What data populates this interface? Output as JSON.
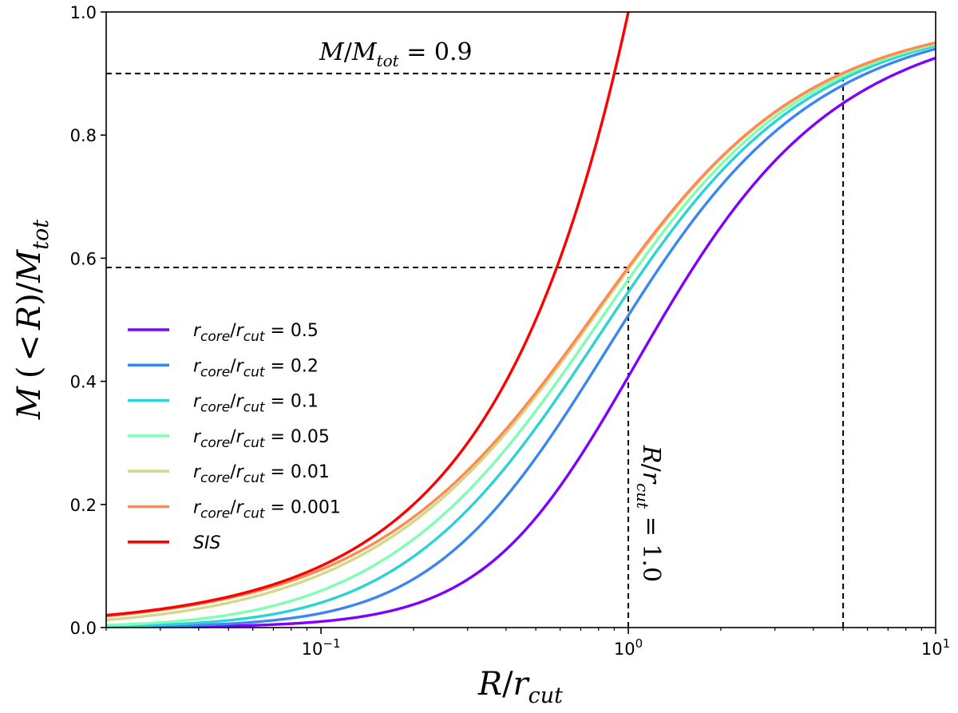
{
  "chart_data": {
    "type": "line",
    "xscale": "log",
    "xlim": [
      0.02,
      10
    ],
    "ylim": [
      0.0,
      1.0
    ],
    "xlabel": "R/r_cut",
    "ylabel": "M(<R)/M_tot",
    "xticks": [
      {
        "value": 0.1,
        "base": "10",
        "exp": "−1"
      },
      {
        "value": 1,
        "base": "10",
        "exp": "0"
      },
      {
        "value": 10,
        "base": "10",
        "exp": "1"
      }
    ],
    "yticks": [
      {
        "value": 0.0,
        "label": "0.0"
      },
      {
        "value": 0.2,
        "label": "0.2"
      },
      {
        "value": 0.4,
        "label": "0.4"
      },
      {
        "value": 0.6,
        "label": "0.6"
      },
      {
        "value": 0.8,
        "label": "0.8"
      },
      {
        "value": 1.0,
        "label": "1.0"
      }
    ],
    "series": [
      {
        "name": "r_core/r_cut = 0.5",
        "ratio": 0.5,
        "color": "#8000ff"
      },
      {
        "name": "r_core/r_cut = 0.2",
        "ratio": 0.2,
        "color": "#3a86f2"
      },
      {
        "name": "r_core/r_cut = 0.1",
        "ratio": 0.1,
        "color": "#2bd3d6"
      },
      {
        "name": "r_core/r_cut = 0.05",
        "ratio": 0.05,
        "color": "#80ffb4"
      },
      {
        "name": "r_core/r_cut = 0.01",
        "ratio": 0.01,
        "color": "#d4d88a"
      },
      {
        "name": "r_core/r_cut = 0.001",
        "ratio": 0.001,
        "color": "#ff8a4f"
      },
      {
        "name": "SIS",
        "ratio": null,
        "color": "#ff0000"
      }
    ],
    "legend_values": [
      "0.5",
      "0.2",
      "0.1",
      "0.05",
      "0.01",
      "0.001"
    ],
    "sis_label": "SIS",
    "reference_lines": [
      {
        "type": "horizontal",
        "y": 0.9,
        "x_to": 5.0
      },
      {
        "type": "vertical",
        "x": 5.0,
        "y_to": 0.9
      },
      {
        "type": "horizontal",
        "y": 0.585,
        "x_to": 1.0
      },
      {
        "type": "vertical",
        "x": 1.0,
        "y_to": 0.585
      }
    ],
    "annotations": {
      "mass_fraction": {
        "value": "0.9"
      },
      "radius_ratio": {
        "value": "1.0"
      }
    },
    "legend_position": "center-left"
  }
}
